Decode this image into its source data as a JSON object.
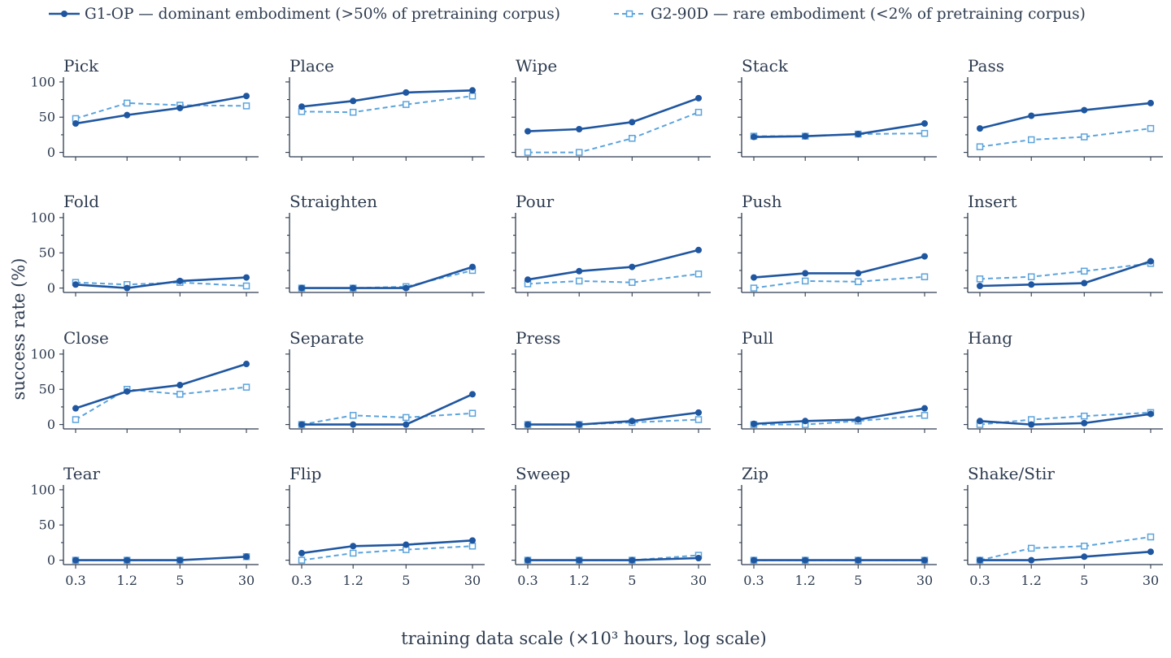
{
  "colors": {
    "text": "#2d3b4f",
    "g1": "#1f56a0",
    "g2": "#5ba3dc"
  },
  "legend": {
    "g1_label": "G1-OP — dominant embodiment (>50% of pretraining corpus)",
    "g2_label": "G2-90D — rare embodiment (<2% of pretraining corpus)"
  },
  "axes": {
    "ylabel": "success rate (%)",
    "xlabel": "training data scale (×10³ hours, log scale)"
  },
  "chart_data": {
    "type": "line",
    "layout": "small-multiples 4x5",
    "xscale": "log",
    "x": [
      0.3,
      1.2,
      5,
      30
    ],
    "x_tick_labels": [
      "0.3",
      "1.2",
      "5",
      "30"
    ],
    "y_ticks": [
      0,
      50,
      100
    ],
    "ylim": [
      0,
      100
    ],
    "legend_position": "top",
    "series_names": [
      "G1-OP — dominant embodiment (>50% of pretraining corpus)",
      "G2-90D — rare embodiment (<2% of pretraining corpus)"
    ],
    "panels": [
      {
        "title": "Pick",
        "g1": [
          41,
          53,
          63,
          80
        ],
        "g2": [
          48,
          70,
          67,
          66
        ]
      },
      {
        "title": "Place",
        "g1": [
          65,
          73,
          85,
          88
        ],
        "g2": [
          58,
          57,
          68,
          80
        ]
      },
      {
        "title": "Wipe",
        "g1": [
          30,
          33,
          43,
          77
        ],
        "g2": [
          0,
          0,
          20,
          57
        ]
      },
      {
        "title": "Stack",
        "g1": [
          22,
          23,
          26,
          41
        ],
        "g2": [
          23,
          23,
          26,
          27
        ]
      },
      {
        "title": "Pass",
        "g1": [
          34,
          52,
          60,
          70
        ],
        "g2": [
          8,
          18,
          22,
          34
        ]
      },
      {
        "title": "Fold",
        "g1": [
          5,
          0,
          10,
          15
        ],
        "g2": [
          8,
          5,
          8,
          3
        ]
      },
      {
        "title": "Straighten",
        "g1": [
          0,
          0,
          0,
          30
        ],
        "g2": [
          0,
          0,
          2,
          25
        ]
      },
      {
        "title": "Pour",
        "g1": [
          12,
          24,
          30,
          54
        ],
        "g2": [
          6,
          10,
          8,
          20
        ]
      },
      {
        "title": "Push",
        "g1": [
          15,
          21,
          21,
          45
        ],
        "g2": [
          0,
          10,
          9,
          16
        ]
      },
      {
        "title": "Insert",
        "g1": [
          3,
          5,
          7,
          38
        ],
        "g2": [
          13,
          16,
          24,
          35
        ]
      },
      {
        "title": "Close",
        "g1": [
          23,
          47,
          56,
          86
        ],
        "g2": [
          7,
          50,
          43,
          53
        ]
      },
      {
        "title": "Separate",
        "g1": [
          0,
          0,
          0,
          43
        ],
        "g2": [
          0,
          13,
          10,
          16
        ]
      },
      {
        "title": "Press",
        "g1": [
          0,
          0,
          5,
          17
        ],
        "g2": [
          0,
          0,
          3,
          7
        ]
      },
      {
        "title": "Pull",
        "g1": [
          1,
          5,
          7,
          23
        ],
        "g2": [
          0,
          0,
          5,
          13
        ]
      },
      {
        "title": "Hang",
        "g1": [
          5,
          0,
          2,
          15
        ],
        "g2": [
          0,
          7,
          12,
          17
        ]
      },
      {
        "title": "Tear",
        "g1": [
          0,
          0,
          0,
          5
        ],
        "g2": [
          0,
          0,
          0,
          5
        ]
      },
      {
        "title": "Flip",
        "g1": [
          10,
          20,
          22,
          28
        ],
        "g2": [
          0,
          10,
          15,
          20
        ]
      },
      {
        "title": "Sweep",
        "g1": [
          0,
          0,
          0,
          3
        ],
        "g2": [
          0,
          0,
          0,
          7
        ]
      },
      {
        "title": "Zip",
        "g1": [
          0,
          0,
          0,
          0
        ],
        "g2": [
          0,
          0,
          0,
          0
        ]
      },
      {
        "title": "Shake/Stir",
        "g1": [
          0,
          0,
          5,
          12
        ],
        "g2": [
          0,
          17,
          20,
          33
        ]
      }
    ]
  }
}
